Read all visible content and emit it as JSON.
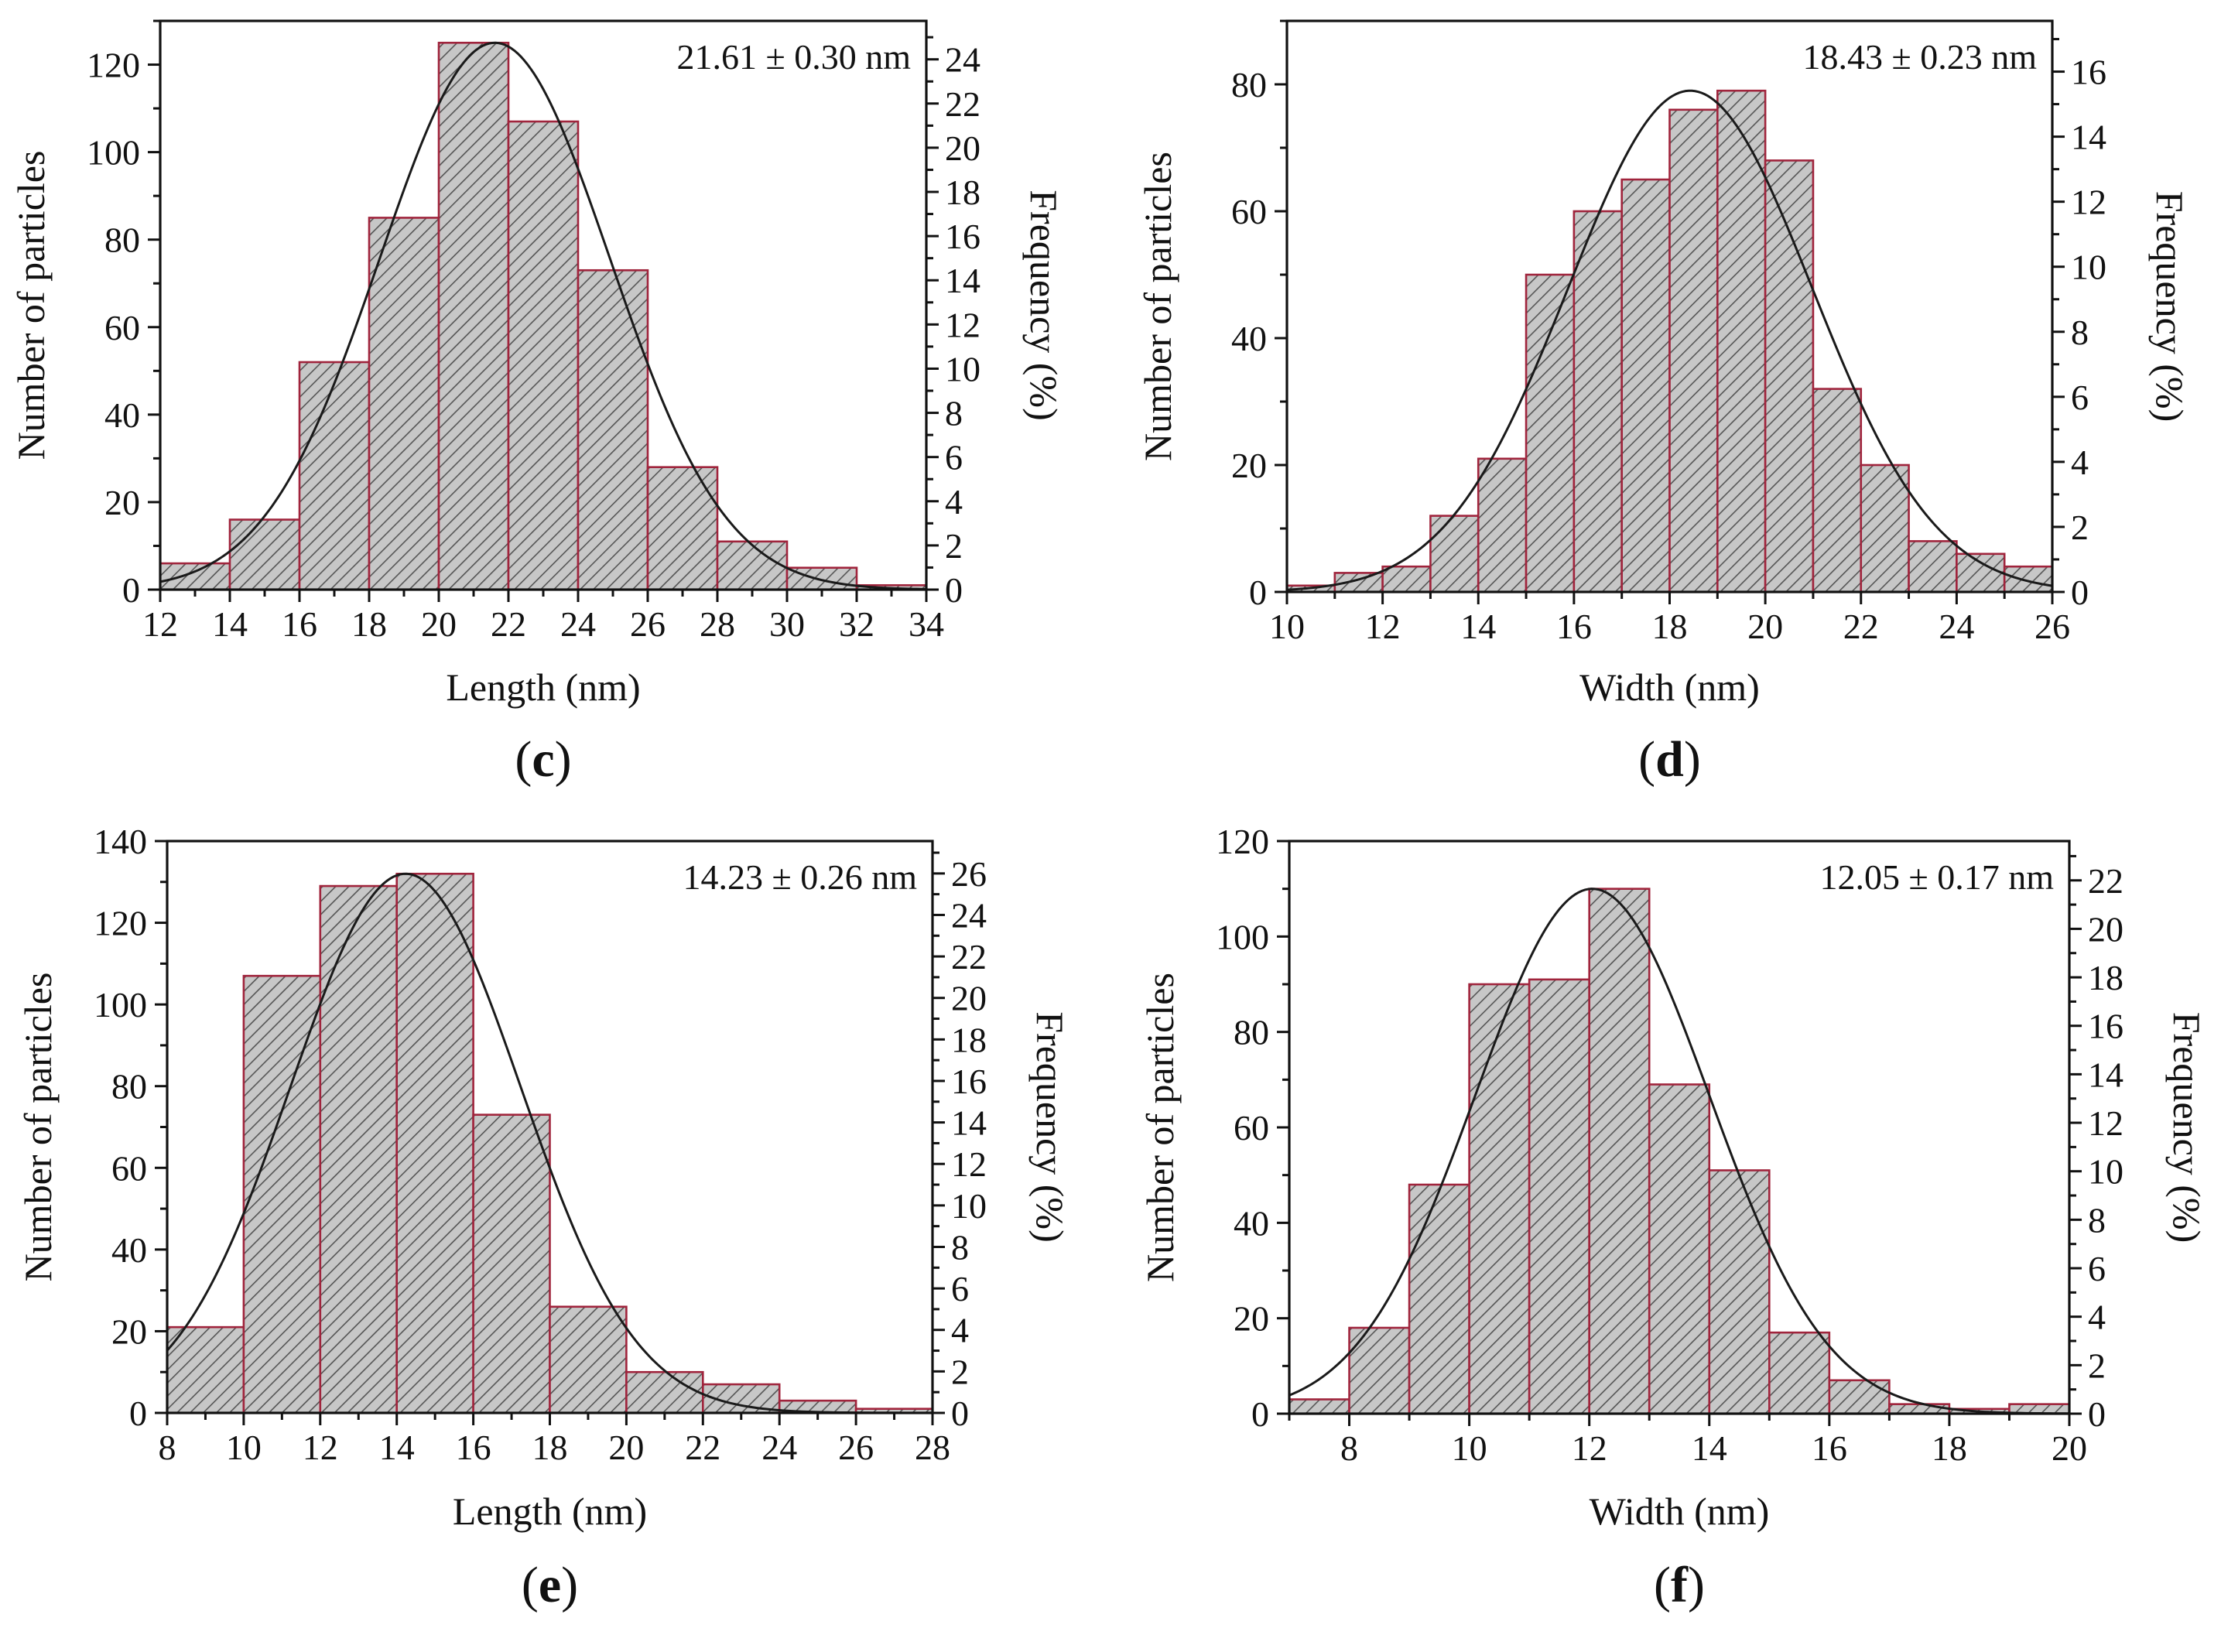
{
  "colors": {
    "bar_fill": "#c7c7c7",
    "bar_hatch": "#555555",
    "bar_edge": "#a0243c",
    "curve": "#1a1a1a",
    "axis": "#111111"
  },
  "chart_data": [
    {
      "panel": "c",
      "panel_label": "(c)",
      "panel_letter": "c",
      "type": "bar",
      "series": [
        {
          "name": "Number of particles",
          "values": [
            6,
            16,
            52,
            85,
            125,
            107,
            73,
            28,
            11,
            5,
            1
          ]
        }
      ],
      "bin_edges": [
        12,
        14,
        16,
        18,
        20,
        22,
        24,
        26,
        28,
        30,
        32,
        34
      ],
      "values": [
        6,
        16,
        52,
        85,
        125,
        107,
        73,
        28,
        11,
        5,
        1
      ],
      "fit": {
        "type": "gaussian",
        "mean": 21.61,
        "sd": 3.3,
        "peak": 125
      },
      "annotation": "21.61 ± 0.30 nm",
      "xlabel": "Length (nm)",
      "ylabel": "Number of particles",
      "y2label": "Frequency (%)",
      "xlim": [
        12,
        34
      ],
      "xticks": [
        12,
        14,
        16,
        18,
        20,
        22,
        24,
        26,
        28,
        30,
        32,
        34
      ],
      "ylim": [
        0,
        130
      ],
      "yticks": [
        0,
        20,
        40,
        60,
        80,
        100,
        120
      ],
      "y2lim": [
        0,
        25.74
      ],
      "y2ticks": [
        0,
        2,
        4,
        6,
        8,
        10,
        12,
        14,
        16,
        18,
        20,
        22,
        24
      ]
    },
    {
      "panel": "d",
      "panel_label": "(d)",
      "panel_letter": "d",
      "type": "bar",
      "series": [
        {
          "name": "Number of particles",
          "values": [
            1,
            3,
            4,
            12,
            21,
            50,
            60,
            65,
            76,
            79,
            68,
            32,
            20,
            8,
            6,
            4
          ]
        }
      ],
      "bin_edges": [
        10,
        11,
        12,
        13,
        14,
        15,
        16,
        17,
        18,
        19,
        20,
        21,
        22,
        23,
        24,
        25,
        26
      ],
      "values": [
        1,
        3,
        4,
        12,
        21,
        50,
        60,
        65,
        76,
        79,
        68,
        32,
        20,
        8,
        6,
        4
      ],
      "fit": {
        "type": "gaussian",
        "mean": 18.43,
        "sd": 2.55,
        "peak": 79
      },
      "annotation": "18.43 ± 0.23 nm",
      "xlabel": "Width (nm)",
      "ylabel": "Number of particles",
      "y2label": "Frequency (%)",
      "xlim": [
        10,
        26
      ],
      "xticks": [
        10,
        12,
        14,
        16,
        18,
        20,
        22,
        24,
        26
      ],
      "ylim": [
        0,
        90
      ],
      "yticks": [
        0,
        20,
        40,
        60,
        80
      ],
      "y2lim": [
        0,
        17.56
      ],
      "y2ticks": [
        0,
        2,
        4,
        6,
        8,
        10,
        12,
        14,
        16
      ]
    },
    {
      "panel": "e",
      "panel_label": "(e)",
      "panel_letter": "e",
      "type": "bar",
      "series": [
        {
          "name": "Number of particles",
          "values": [
            21,
            107,
            129,
            132,
            73,
            26,
            10,
            7,
            3,
            1
          ]
        }
      ],
      "bin_edges": [
        8,
        10,
        12,
        14,
        16,
        18,
        20,
        22,
        24,
        26,
        28
      ],
      "values": [
        21,
        107,
        129,
        132,
        73,
        26,
        10,
        7,
        3,
        1
      ],
      "fit": {
        "type": "gaussian",
        "mean": 14.23,
        "sd": 3.0,
        "peak": 132
      },
      "annotation": "14.23 ± 0.26 nm",
      "xlabel": "Length (nm)",
      "ylabel": "Number of particles",
      "y2label": "Frequency (%)",
      "xlim": [
        8,
        28
      ],
      "xticks": [
        8,
        10,
        12,
        14,
        16,
        18,
        20,
        22,
        24,
        26,
        28
      ],
      "ylim": [
        0,
        140
      ],
      "yticks": [
        0,
        20,
        40,
        60,
        80,
        100,
        120,
        140
      ],
      "y2lim": [
        0,
        27.56
      ],
      "y2ticks": [
        0,
        2,
        4,
        6,
        8,
        10,
        12,
        14,
        16,
        18,
        20,
        22,
        24,
        26
      ]
    },
    {
      "panel": "f",
      "panel_label": "(f)",
      "panel_letter": "f",
      "type": "bar",
      "series": [
        {
          "name": "Number of particles",
          "values": [
            3,
            18,
            48,
            90,
            91,
            110,
            69,
            51,
            17,
            7,
            2,
            1,
            2
          ]
        }
      ],
      "bin_edges": [
        7,
        8,
        9,
        10,
        11,
        12,
        13,
        14,
        15,
        16,
        17,
        18,
        19,
        20
      ],
      "values": [
        3,
        18,
        48,
        90,
        91,
        110,
        69,
        51,
        17,
        7,
        2,
        1,
        2
      ],
      "fit": {
        "type": "gaussian",
        "mean": 12.05,
        "sd": 1.95,
        "peak": 110
      },
      "annotation": "12.05 ± 0.17 nm",
      "xlabel": "Width (nm)",
      "ylabel": "Number of particles",
      "y2label": "Frequency (%)",
      "xlim": [
        7,
        20
      ],
      "xticks": [
        8,
        10,
        12,
        14,
        16,
        18,
        20
      ],
      "ylim": [
        0,
        120
      ],
      "yticks": [
        0,
        20,
        40,
        60,
        80,
        100,
        120
      ],
      "y2lim": [
        0,
        23.62
      ],
      "y2ticks": [
        0,
        2,
        4,
        6,
        8,
        10,
        12,
        14,
        16,
        18,
        20,
        22
      ]
    }
  ]
}
